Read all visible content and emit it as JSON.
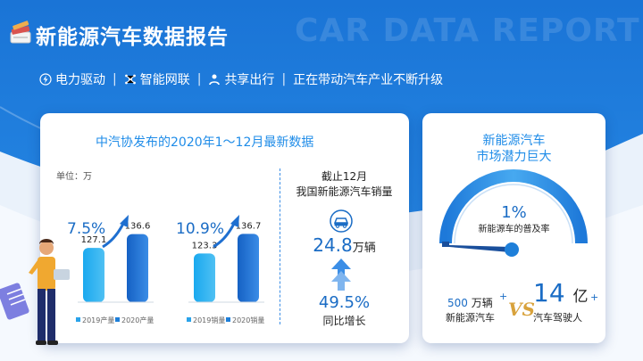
{
  "header": {
    "title": "新能源汽车数据报告",
    "watermark": "CAR DATA REPORT"
  },
  "tagline": {
    "items": [
      {
        "label": "电力驱动",
        "icon": "lightning-icon"
      },
      {
        "label": "智能网联",
        "icon": "network-icon"
      },
      {
        "label": "共享出行",
        "icon": "share-person-icon"
      }
    ],
    "slogan": "正在带动汽车产业不断升级"
  },
  "left_card": {
    "heading": "中汽协发布的2020年1～12月最新数据",
    "unit": "单位：万",
    "deadline_line1": "截止12月",
    "deadline_line2": "我国新能源汽车销量",
    "sales_value": "24.8",
    "sales_unit": "万辆",
    "growth_value": "49.5%",
    "growth_label": "同比增长"
  },
  "chart_data": [
    {
      "type": "bar",
      "categories": [
        "2019产量",
        "2020产量"
      ],
      "values": [
        127.1,
        136.6
      ],
      "growth_label": "7.5%",
      "colors": [
        "#2aa3ea",
        "#1e7fd9"
      ]
    },
    {
      "type": "bar",
      "categories": [
        "2019销量",
        "2020销量"
      ],
      "values": [
        123.3,
        136.7
      ],
      "growth_label": "10.9%",
      "colors": [
        "#2aa3ea",
        "#1e7fd9"
      ]
    }
  ],
  "right_card": {
    "heading_line1": "新能源汽车",
    "heading_line2": "市场潜力巨大",
    "gauge_percent": "1%",
    "gauge_value": 0.01,
    "gauge_label": "新能源车的普及率",
    "left_num": "500",
    "left_unit": "万辆",
    "left_plus": "+",
    "left_label": "新能源汽车",
    "vs": "VS",
    "right_num": "14",
    "right_unit": "亿",
    "right_plus": "+",
    "right_label": "汽车驾驶人"
  },
  "colors": {
    "primary": "#1f8ce8",
    "accent": "#1a6cc5",
    "vs": "#d8a23c"
  }
}
